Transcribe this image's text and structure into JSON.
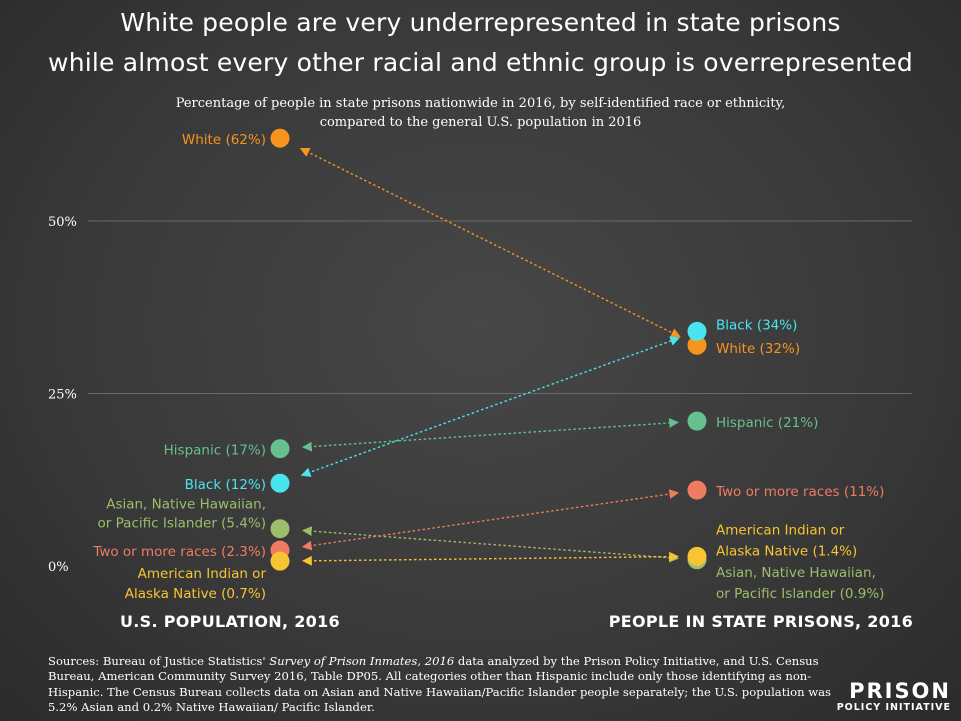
{
  "title": {
    "line1": "White people are very underrepresented in state prisons",
    "line2": "while almost every other racial and ethnic group is overrepresented"
  },
  "subtitle": {
    "line1": "Percentage of people in state prisons nationwide in 2016, by self-identified race or ethnicity,",
    "line2": "compared to the general U.S. population in 2016"
  },
  "chart_data": {
    "type": "slope",
    "ylim": [
      0,
      62
    ],
    "yticks": [
      {
        "value": 0,
        "label": "0%"
      },
      {
        "value": 25,
        "label": "25%"
      },
      {
        "value": 50,
        "label": "50%"
      }
    ],
    "xlabels": [
      "U.S. POPULATION, 2016",
      "PEOPLE IN STATE PRISONS, 2016"
    ],
    "series": [
      {
        "name": "White",
        "color": "#f7941d",
        "us": 62,
        "prison": 32,
        "us_label": [
          "White (62%)"
        ],
        "prison_label": [
          "White (32%)"
        ]
      },
      {
        "name": "Black",
        "color": "#48e4f0",
        "us": 12,
        "prison": 34,
        "us_label": [
          "Black (12%)"
        ],
        "prison_label": [
          "Black (34%)"
        ]
      },
      {
        "name": "Hispanic",
        "color": "#66c08f",
        "us": 17,
        "prison": 21,
        "us_label": [
          "Hispanic (17%)"
        ],
        "prison_label": [
          "Hispanic (21%)"
        ]
      },
      {
        "name": "Asian, Native Hawaiian, or Pacific Islander",
        "color": "#9cbe6a",
        "us": 5.4,
        "prison": 0.9,
        "us_label": [
          "Asian, Native Hawaiian,",
          "or Pacific Islander (5.4%)"
        ],
        "prison_label": [
          "Asian, Native Hawaiian,",
          "or Pacific Islander (0.9%)"
        ]
      },
      {
        "name": "Two or more races",
        "color": "#ef7b62",
        "us": 2.3,
        "prison": 11,
        "us_label": [
          "Two or more races (2.3%)"
        ],
        "prison_label": [
          "Two or more races (11%)"
        ]
      },
      {
        "name": "American Indian or Alaska Native",
        "color": "#f7c531",
        "us": 0.7,
        "prison": 1.4,
        "us_label": [
          "American Indian or",
          "Alaska Native (0.7%)"
        ],
        "prison_label": [
          "American Indian or",
          "Alaska Native (1.4%)"
        ]
      }
    ]
  },
  "sources": {
    "prefix": "Sources: Bureau of Justice Statistics' ",
    "italic": "Survey of Prison Inmates, 2016",
    "suffix": " data analyzed by the Prison Policy Initiative, and U.S. Census Bureau, American Community Survey 2016, Table DP05. All categories other than Hispanic include only those identifying as non-Hispanic. The Census Bureau collects data on Asian and Native Hawaiian/Pacific Islander people separately; the U.S. population was 5.2% Asian and 0.2% Native Hawaiian/ Pacific Islander."
  },
  "logo": {
    "top": "PRISON",
    "bottom": "POLICY INITIATIVE"
  }
}
